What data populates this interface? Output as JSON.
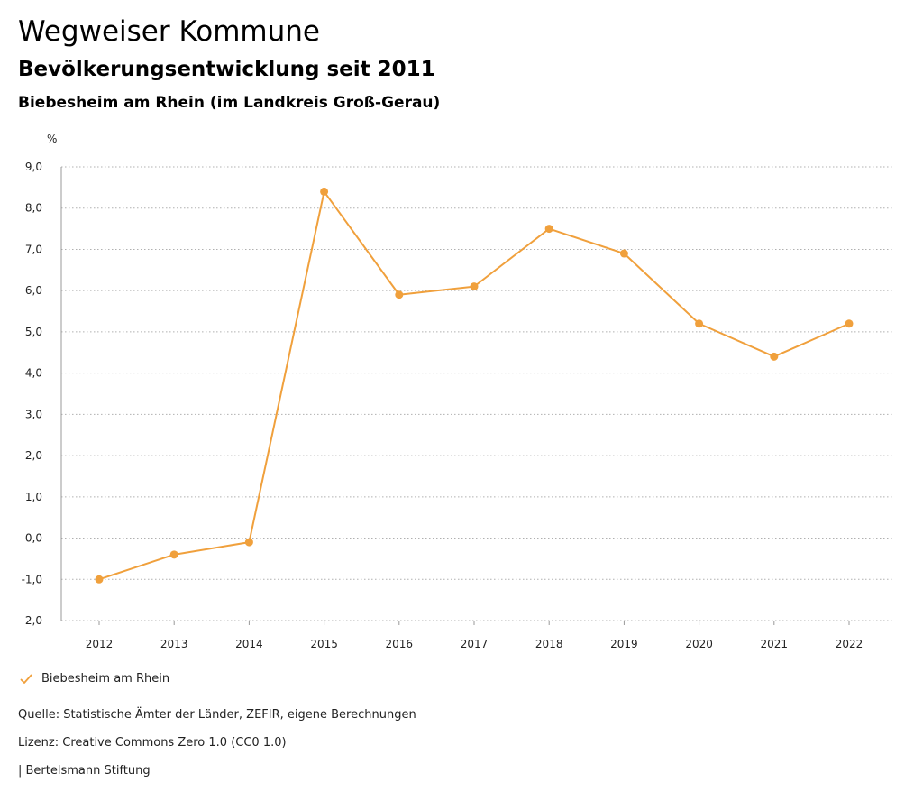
{
  "header": {
    "app_title": "Wegweiser Kommune",
    "subtitle": "Bevölkerungsentwicklung seit 2011",
    "region": "Biebesheim am Rhein (im Landkreis Groß-Gerau)"
  },
  "colors": {
    "series": "#f0a03c",
    "grid": "#b0b0b0",
    "axis": "#999999"
  },
  "legend": {
    "label": "Biebesheim am Rhein",
    "icon": "checkmark-icon"
  },
  "footer": {
    "source": "Quelle: Statistische Ämter der Länder, ZEFIR, eigene Berechnungen",
    "license": "Lizenz: Creative Commons Zero 1.0 (CC0 1.0)",
    "publisher": "| Bertelsmann Stiftung"
  },
  "chart_data": {
    "type": "line",
    "title": "Bevölkerungsentwicklung seit 2011",
    "xlabel": "",
    "ylabel": "%",
    "ylim": [
      -2.0,
      9.0
    ],
    "yticks": [
      "9,0",
      "8,0",
      "7,0",
      "6,0",
      "5,0",
      "4,0",
      "3,0",
      "2,0",
      "1,0",
      "0,0",
      "-1,0",
      "-2,0"
    ],
    "ytick_values": [
      9,
      8,
      7,
      6,
      5,
      4,
      3,
      2,
      1,
      0,
      -1,
      -2
    ],
    "grid": true,
    "legend_position": "bottom-left",
    "categories": [
      "2012",
      "2013",
      "2014",
      "2015",
      "2016",
      "2017",
      "2018",
      "2019",
      "2020",
      "2021",
      "2022"
    ],
    "series": [
      {
        "name": "Biebesheim am Rhein",
        "values": [
          -1.0,
          -0.4,
          -0.1,
          8.4,
          5.9,
          6.1,
          7.5,
          6.9,
          5.2,
          4.4,
          5.2
        ]
      }
    ]
  }
}
